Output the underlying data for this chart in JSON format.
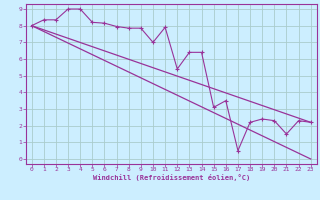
{
  "xlabel": "Windchill (Refroidissement éolien,°C)",
  "bg_color": "#cceeff",
  "grid_color": "#aacccc",
  "line_color": "#993399",
  "axis_line_color": "#7700aa",
  "xlim": [
    -0.5,
    23.5
  ],
  "ylim": [
    -0.3,
    9.3
  ],
  "xticks": [
    0,
    1,
    2,
    3,
    4,
    5,
    6,
    7,
    8,
    9,
    10,
    11,
    12,
    13,
    14,
    15,
    16,
    17,
    18,
    19,
    20,
    21,
    22,
    23
  ],
  "yticks": [
    0,
    1,
    2,
    3,
    4,
    5,
    6,
    7,
    8,
    9
  ],
  "line1_x": [
    0,
    1,
    2,
    3,
    4,
    5,
    6,
    7,
    8,
    9,
    10,
    11,
    12,
    13,
    14,
    15,
    16,
    17,
    18,
    19,
    20,
    21,
    22,
    23
  ],
  "line1_y": [
    8.0,
    8.35,
    8.35,
    9.0,
    9.0,
    8.2,
    8.15,
    7.95,
    7.85,
    7.85,
    7.0,
    7.9,
    5.4,
    6.4,
    6.4,
    3.1,
    3.5,
    0.5,
    2.2,
    2.4,
    2.3,
    1.5,
    2.3,
    2.2
  ],
  "line2_x": [
    0,
    23
  ],
  "line2_y": [
    8.0,
    2.2
  ],
  "line3_x": [
    0,
    23
  ],
  "line3_y": [
    8.0,
    0.0
  ]
}
